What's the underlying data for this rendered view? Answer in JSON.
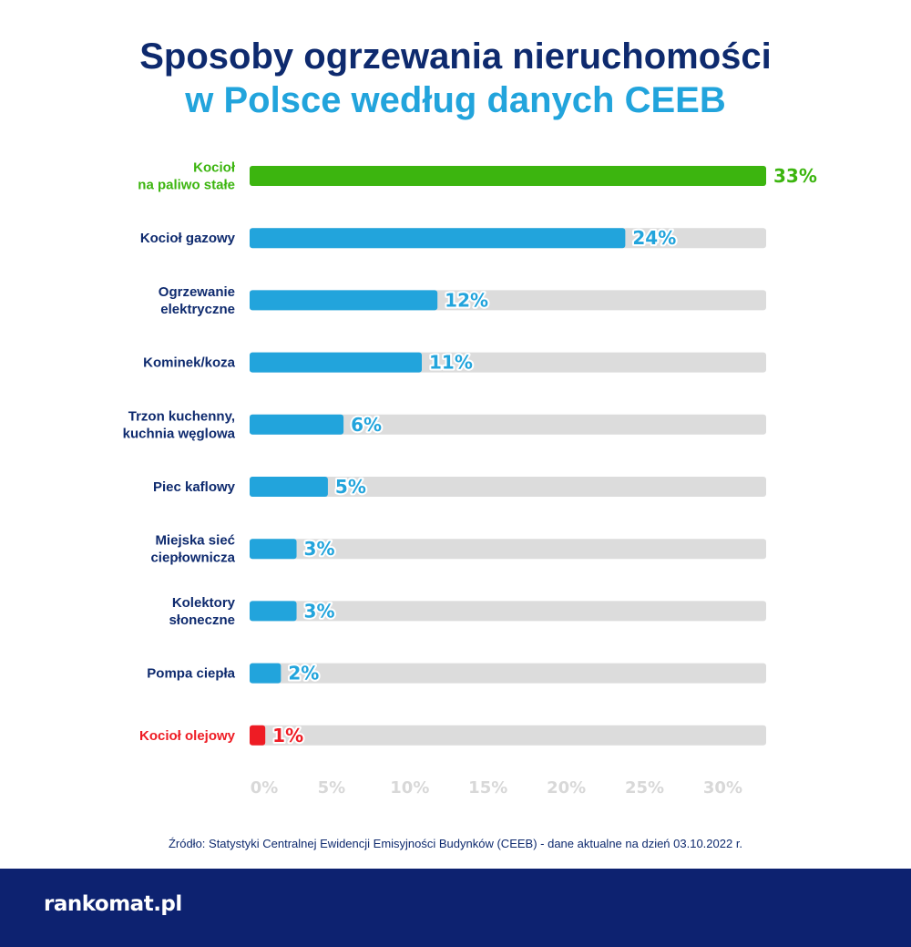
{
  "title": {
    "line1": "Sposoby ogrzewania nieruchomości",
    "line2": "w Polsce według danych CEEB"
  },
  "colors": {
    "title_dark": "#0e2a6e",
    "title_light": "#22a4dc",
    "bar_default": "#22a4dc",
    "bar_highlight_max": "#3cb50f",
    "bar_highlight_min": "#ee1c24",
    "track": "#dcdcdc",
    "tick_text": "#d8d8d8",
    "footer_bg": "#0d2270"
  },
  "chart_data": {
    "type": "bar",
    "orientation": "horizontal",
    "categories": [
      [
        "Kocioł",
        "na paliwo stałe"
      ],
      [
        "Kocioł gazowy"
      ],
      [
        "Ogrzewanie",
        "elektryczne"
      ],
      [
        "Kominek/koza"
      ],
      [
        "Trzon kuchenny,",
        "kuchnia węglowa"
      ],
      [
        "Piec kaflowy"
      ],
      [
        "Miejska sieć",
        "ciepłownicza"
      ],
      [
        "Kolektory",
        "słoneczne"
      ],
      [
        "Pompa ciepła"
      ],
      [
        "Kocioł olejowy"
      ]
    ],
    "values": [
      33,
      24,
      12,
      11,
      6,
      5,
      3,
      3,
      2,
      1
    ],
    "value_labels": [
      "33%",
      "24%",
      "12%",
      "11%",
      "6%",
      "5%",
      "3%",
      "3%",
      "2%",
      "1%"
    ],
    "bar_colors": [
      "#3cb50f",
      "#22a4dc",
      "#22a4dc",
      "#22a4dc",
      "#22a4dc",
      "#22a4dc",
      "#22a4dc",
      "#22a4dc",
      "#22a4dc",
      "#ee1c24"
    ],
    "label_colors": [
      "#3cb50f",
      "#0e2a6e",
      "#0e2a6e",
      "#0e2a6e",
      "#0e2a6e",
      "#0e2a6e",
      "#0e2a6e",
      "#0e2a6e",
      "#0e2a6e",
      "#ee1c24"
    ],
    "value_label_colors": [
      "#3cb50f",
      "#22a4dc",
      "#22a4dc",
      "#22a4dc",
      "#22a4dc",
      "#22a4dc",
      "#22a4dc",
      "#22a4dc",
      "#22a4dc",
      "#ee1c24"
    ],
    "x_ticks": [
      0,
      5,
      10,
      15,
      20,
      25,
      30
    ],
    "x_tick_labels": [
      "0%",
      "5%",
      "10%",
      "15%",
      "20%",
      "25%",
      "30%"
    ],
    "xlim": [
      0,
      33
    ],
    "grid": false,
    "legend": "none",
    "xlabel": "",
    "ylabel": ""
  },
  "source": "Źródło: Statystyki Centralnej Ewidencji Emisyjności Budynków (CEEB) - dane aktualne na dzień 03.10.2022 r.",
  "footer": {
    "logo": "rankomat.pl"
  }
}
